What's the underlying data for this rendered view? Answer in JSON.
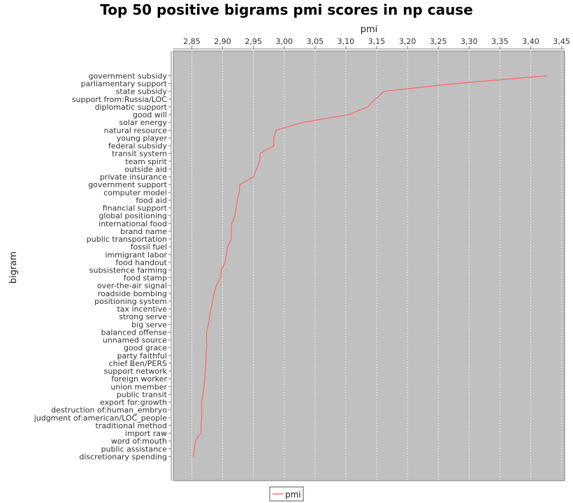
{
  "chart_data": {
    "type": "line",
    "title": "Top 50 positive bigrams pmi scores in np cause",
    "xlabel": "pmi",
    "ylabel": "bigram",
    "xlim": [
      2.82,
      3.455
    ],
    "x_ticks": [
      "2,85",
      "2,90",
      "2,95",
      "3,00",
      "3,05",
      "3,10",
      "3,15",
      "3,20",
      "3,25",
      "3,30",
      "3,35",
      "3,40",
      "3,45"
    ],
    "x_tick_values": [
      2.85,
      2.9,
      2.95,
      3.0,
      3.05,
      3.1,
      3.15,
      3.2,
      3.25,
      3.3,
      3.35,
      3.4,
      3.45
    ],
    "grid": true,
    "legend": {
      "position": "bottom",
      "entries": [
        "pmi"
      ]
    },
    "colors": {
      "line": "#ff6b6b",
      "plot_bg": "#c0c0c0",
      "grid": "#e8e8e8"
    },
    "categories": [
      "government subsidy",
      "parliamentary support",
      "state subsidy",
      "support from:Russia/LOC",
      "diplomatic support",
      "good will",
      "solar energy",
      "natural resource",
      "young player",
      "federal subsidy",
      "transit system",
      "team spirit",
      "outside aid",
      "private insurance",
      "government support",
      "computer model",
      "food aid",
      "financial support",
      "global positioning",
      "international food",
      "brand name",
      "public transportation",
      "fossil fuel",
      "immigrant labor",
      "food handout",
      "subsistence farming",
      "food stamp",
      "over-the-air signal",
      "roadside bombing",
      "positioning system",
      "tax incentive",
      "strong serve",
      "big serve",
      "balanced offense",
      "unnamed source",
      "good grace",
      "party faithful",
      "chief Ben/PERS",
      "support network",
      "foreign worker",
      "union member",
      "public transit",
      "export for:growth",
      "destruction of:human_embryo",
      "judgment of:american/LOC_people",
      "traditional method",
      "import raw",
      "word of:mouth",
      "public assistance",
      "discretionary spending"
    ],
    "series": [
      {
        "name": "pmi",
        "values": [
          3.425,
          3.278,
          3.162,
          3.148,
          3.135,
          3.105,
          3.03,
          2.987,
          2.983,
          2.983,
          2.961,
          2.96,
          2.955,
          2.95,
          2.928,
          2.927,
          2.924,
          2.922,
          2.92,
          2.915,
          2.914,
          2.914,
          2.908,
          2.906,
          2.904,
          2.898,
          2.897,
          2.89,
          2.886,
          2.884,
          2.881,
          2.879,
          2.877,
          2.874,
          2.874,
          2.874,
          2.873,
          2.873,
          2.872,
          2.871,
          2.87,
          2.868,
          2.866,
          2.866,
          2.866,
          2.865,
          2.865,
          2.856,
          2.854,
          2.853
        ]
      }
    ]
  }
}
